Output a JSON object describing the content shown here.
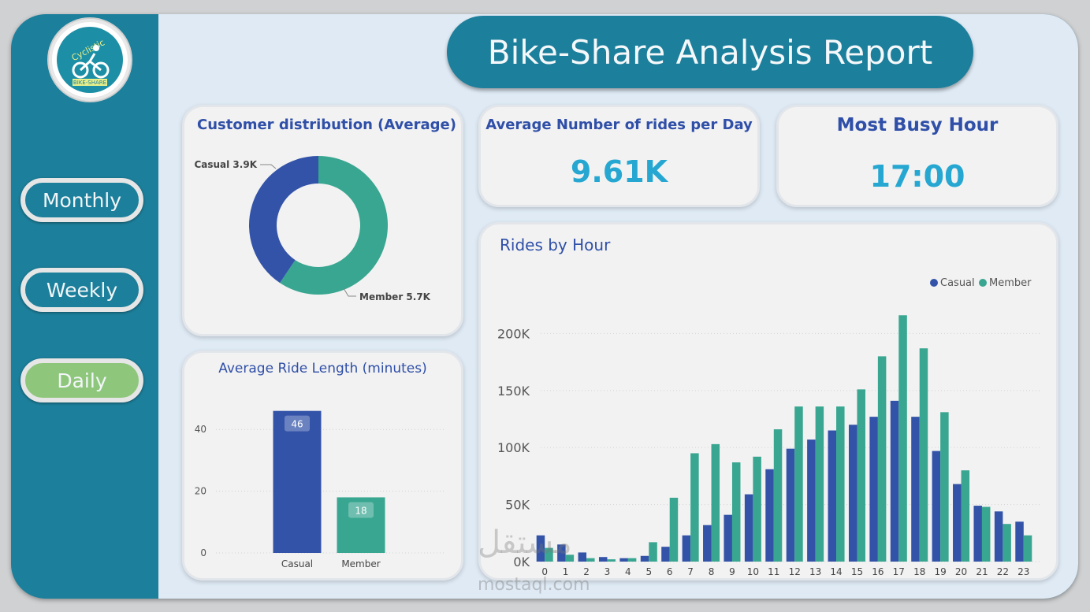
{
  "header": {
    "title": "Bike-Share Analysis Report"
  },
  "logo": {
    "brand": "Cyclistic",
    "tagline": "BIKE-SHARE",
    "icon": "cyclist-icon"
  },
  "nav": {
    "monthly": "Monthly",
    "weekly": "Weekly",
    "daily": "Daily",
    "active": "Daily"
  },
  "kpi": {
    "rides_title": "Average Number of rides per Day",
    "rides_value": "9.61K",
    "busy_title": "Most Busy Hour",
    "busy_value": "17:00"
  },
  "colors": {
    "casual": "#3353a8",
    "member": "#38a690",
    "accent": "#1c7f9b",
    "active_nav": "#8ec77c",
    "title_blue": "#2f4fa8",
    "kpi_value": "#26a7d2"
  },
  "watermark": {
    "text": "mostaql.com",
    "arabic": "مستقل"
  },
  "charts": {
    "distribution": {
      "type": "pie",
      "title": "Customer distribution (Average)",
      "slices": [
        {
          "name": "Casual",
          "value": 3.9,
          "label": "Casual 3.9K"
        },
        {
          "name": "Member",
          "value": 5.7,
          "label": "Member 5.7K"
        }
      ]
    },
    "ride_length": {
      "type": "bar",
      "title": "Average Ride Length (minutes)",
      "categories": [
        "Casual",
        "Member"
      ],
      "values": [
        46,
        18
      ],
      "ylim": [
        0,
        50
      ],
      "yticks": [
        0,
        20,
        40
      ],
      "grid": true
    },
    "rides_by_hour": {
      "type": "bar",
      "title": "Rides by Hour",
      "legend_position": "top-right",
      "categories": [
        "0",
        "1",
        "2",
        "3",
        "4",
        "5",
        "6",
        "7",
        "8",
        "9",
        "10",
        "11",
        "12",
        "13",
        "14",
        "15",
        "16",
        "17",
        "18",
        "19",
        "20",
        "21",
        "22",
        "23"
      ],
      "series": [
        {
          "name": "Casual",
          "values": [
            23000,
            15000,
            8000,
            4000,
            3000,
            5000,
            13000,
            23000,
            32000,
            41000,
            59000,
            81000,
            99000,
            107000,
            115000,
            120000,
            127000,
            141000,
            127000,
            97000,
            68000,
            49000,
            44000,
            35000
          ]
        },
        {
          "name": "Member",
          "values": [
            12000,
            6000,
            3000,
            2000,
            3000,
            17000,
            56000,
            95000,
            103000,
            87000,
            92000,
            116000,
            136000,
            136000,
            136000,
            151000,
            180000,
            216000,
            187000,
            131000,
            80000,
            48000,
            33000,
            23000
          ]
        }
      ],
      "ylim": [
        0,
        230000
      ],
      "yticks": [
        {
          "value": 0,
          "label": "0K"
        },
        {
          "value": 50000,
          "label": "50K"
        },
        {
          "value": 100000,
          "label": "100K"
        },
        {
          "value": 150000,
          "label": "150K"
        },
        {
          "value": 200000,
          "label": "200K"
        }
      ],
      "grid": true
    }
  },
  "chart_data": [
    {
      "type": "pie",
      "title": "Customer distribution (Average)",
      "labels": [
        "Casual",
        "Member"
      ],
      "values": [
        3.9,
        5.7
      ],
      "units": "K"
    },
    {
      "type": "bar",
      "title": "Average Ride Length (minutes)",
      "categories": [
        "Casual",
        "Member"
      ],
      "values": [
        46,
        18
      ],
      "ylim": [
        0,
        50
      ]
    },
    {
      "type": "bar",
      "title": "Rides by Hour",
      "categories": [
        "0",
        "1",
        "2",
        "3",
        "4",
        "5",
        "6",
        "7",
        "8",
        "9",
        "10",
        "11",
        "12",
        "13",
        "14",
        "15",
        "16",
        "17",
        "18",
        "19",
        "20",
        "21",
        "22",
        "23"
      ],
      "series": [
        {
          "name": "Casual",
          "values": [
            23000,
            15000,
            8000,
            4000,
            3000,
            5000,
            13000,
            23000,
            32000,
            41000,
            59000,
            81000,
            99000,
            107000,
            115000,
            120000,
            127000,
            141000,
            127000,
            97000,
            68000,
            49000,
            44000,
            35000
          ]
        },
        {
          "name": "Member",
          "values": [
            12000,
            6000,
            3000,
            2000,
            3000,
            17000,
            56000,
            95000,
            103000,
            87000,
            92000,
            116000,
            136000,
            136000,
            136000,
            151000,
            180000,
            216000,
            187000,
            131000,
            80000,
            48000,
            33000,
            23000
          ]
        }
      ],
      "ylim": [
        0,
        230000
      ],
      "legend": "top-right"
    }
  ]
}
